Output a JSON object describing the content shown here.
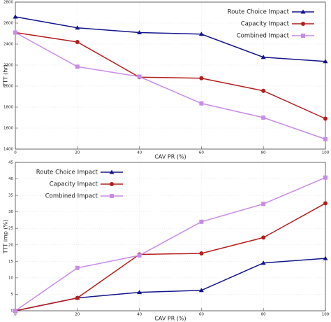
{
  "chart_data": [
    {
      "type": "line",
      "ylabel": "TTT (hr)",
      "xlabel": "CAV PR (%)",
      "x": [
        0,
        20,
        40,
        60,
        80,
        100
      ],
      "xlim": [
        0,
        100
      ],
      "xticks": [
        0,
        20,
        40,
        60,
        80,
        100
      ],
      "ylim": [
        1400,
        2800
      ],
      "yticks": [
        1400,
        1600,
        1800,
        2000,
        2200,
        2400,
        2600,
        2800
      ],
      "grid": true,
      "legend": "upper right",
      "series": [
        {
          "name": "Route Choice Impact",
          "color": "#14148c",
          "marker": "triangle",
          "values": [
            2660,
            2555,
            2510,
            2495,
            2275,
            2235
          ]
        },
        {
          "name": "Capacity Impact",
          "color": "#b41e1e",
          "marker": "circle",
          "values": [
            2510,
            2420,
            2085,
            2075,
            1955,
            1690
          ]
        },
        {
          "name": "Combined Impact",
          "color": "#c88ce6",
          "marker": "square",
          "values": [
            2510,
            2185,
            2090,
            1835,
            1700,
            1495
          ]
        }
      ]
    },
    {
      "type": "line",
      "ylabel": "TTT imp (%)",
      "xlabel": "CAV PR (%)",
      "x": [
        0,
        20,
        40,
        60,
        80,
        100
      ],
      "xlim": [
        0,
        100
      ],
      "xticks": [
        0,
        20,
        40,
        60,
        80,
        100
      ],
      "ylim": [
        0,
        45
      ],
      "yticks": [
        0,
        5,
        10,
        15,
        20,
        25,
        30,
        35,
        40,
        45
      ],
      "grid": true,
      "legend": "upper left",
      "series": [
        {
          "name": "Route Choice Impact",
          "color": "#14148c",
          "marker": "triangle",
          "values": [
            0,
            3.9,
            5.6,
            6.2,
            14.5,
            15.9
          ]
        },
        {
          "name": "Capacity Impact",
          "color": "#b41e1e",
          "marker": "circle",
          "values": [
            0,
            3.9,
            17.1,
            17.4,
            22.2,
            32.6
          ]
        },
        {
          "name": "Combined Impact",
          "color": "#c88ce6",
          "marker": "square",
          "values": [
            0,
            13.0,
            16.8,
            27.0,
            32.4,
            40.4
          ]
        }
      ]
    }
  ]
}
